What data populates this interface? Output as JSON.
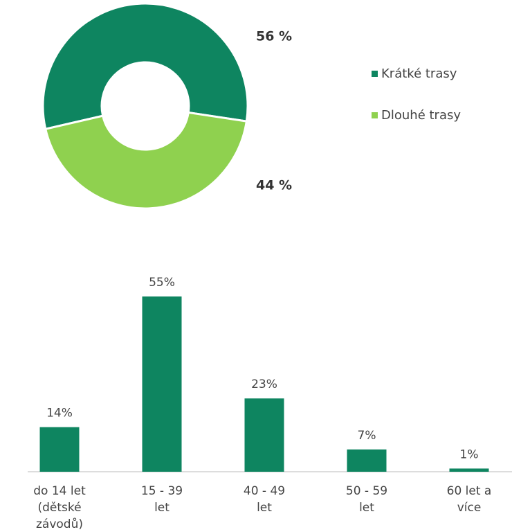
{
  "chart_data": [
    {
      "type": "donut",
      "series": [
        {
          "name": "Krátké trasy",
          "color": "#0e8560",
          "values": [
            56
          ],
          "value_labels": [
            "56 %"
          ]
        },
        {
          "name": "Dlouhé trasy",
          "color": "#8fd14f",
          "values": [
            44
          ],
          "value_labels": [
            "44 %"
          ]
        }
      ]
    },
    {
      "type": "bar",
      "categories": [
        "do 14 let (dětské závodů)",
        "15 - 39 let",
        "40 - 49 let",
        "50 - 59 let",
        "60 let a více"
      ],
      "values": [
        14,
        55,
        23,
        7,
        1
      ],
      "value_labels": [
        "14%",
        "55%",
        "23%",
        "7%",
        "1%"
      ],
      "color": "#0e8560"
    }
  ]
}
